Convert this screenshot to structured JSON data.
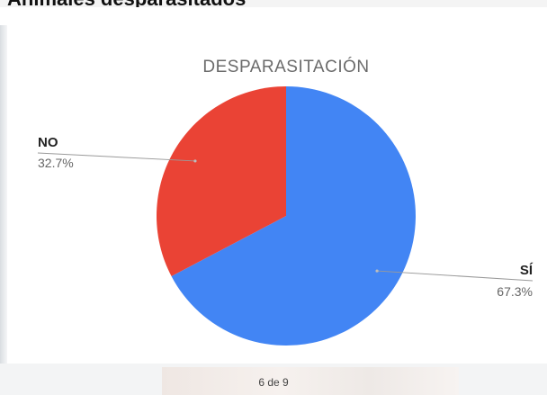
{
  "page": {
    "heading": "Animales desparasitados",
    "page_counter": "6 de 9"
  },
  "chart_data": {
    "type": "pie",
    "title": "DESPARASITACIÓN",
    "slices": [
      {
        "label": "SÍ",
        "value": 67.3,
        "percent_label": "67.3%",
        "color": "#4285f4"
      },
      {
        "label": "NO",
        "value": 32.7,
        "percent_label": "32.7%",
        "color": "#ea4335"
      }
    ],
    "start": "12 o'clock",
    "direction": "clockwise"
  }
}
